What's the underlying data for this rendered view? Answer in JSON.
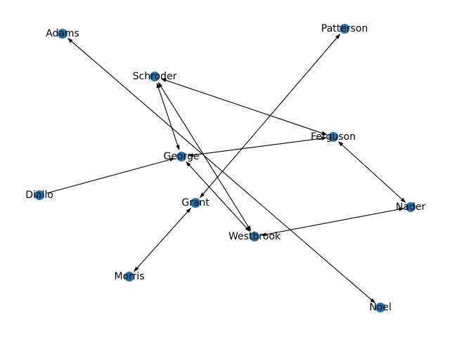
{
  "diagram": {
    "type": "directed-graph",
    "node_color": "#1f77b4",
    "edge_color": "#000000",
    "nodes": [
      {
        "id": "Adams",
        "label": "Adams"
      },
      {
        "id": "Patterson",
        "label": "Patterson"
      },
      {
        "id": "Schroder",
        "label": "Schroder"
      },
      {
        "id": "Ferguson",
        "label": "Ferguson"
      },
      {
        "id": "George",
        "label": "George"
      },
      {
        "id": "Diallo",
        "label": "Diallo"
      },
      {
        "id": "Grant",
        "label": "Grant"
      },
      {
        "id": "Nader",
        "label": "Nader"
      },
      {
        "id": "Westbrook",
        "label": "Westbrook"
      },
      {
        "id": "Morris",
        "label": "Morris"
      },
      {
        "id": "Noel",
        "label": "Noel"
      }
    ],
    "edges": [
      {
        "source": "Adams",
        "target": "Noel",
        "bidirectional": true
      },
      {
        "source": "Grant",
        "target": "Patterson",
        "bidirectional": true
      },
      {
        "source": "Schroder",
        "target": "Ferguson",
        "bidirectional": true
      },
      {
        "source": "Schroder",
        "target": "George",
        "bidirectional": true
      },
      {
        "source": "Schroder",
        "target": "Westbrook",
        "bidirectional": true
      },
      {
        "source": "George",
        "target": "Ferguson",
        "bidirectional": true
      },
      {
        "source": "George",
        "target": "Westbrook",
        "bidirectional": true
      },
      {
        "source": "Diallo",
        "target": "George",
        "bidirectional": false
      },
      {
        "source": "Ferguson",
        "target": "Nader",
        "bidirectional": true
      },
      {
        "source": "Westbrook",
        "target": "Nader",
        "bidirectional": true
      },
      {
        "source": "Grant",
        "target": "Morris",
        "bidirectional": true
      }
    ]
  }
}
